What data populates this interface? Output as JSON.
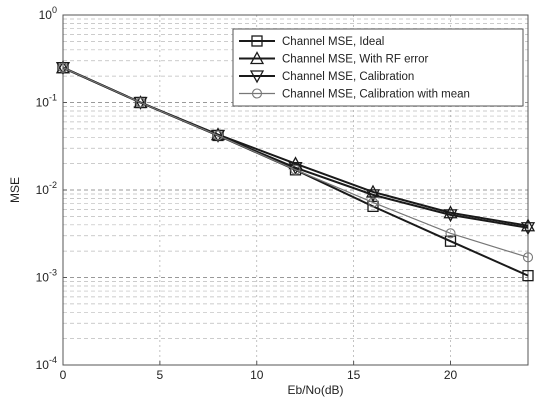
{
  "chart_data": {
    "type": "line",
    "title": "",
    "xlabel": "Eb/No(dB)",
    "ylabel": "MSE",
    "xlim": [
      0,
      24
    ],
    "ylim": [
      0.0001,
      1
    ],
    "yscale": "log",
    "grid": true,
    "legend_position": "top-right",
    "x_ticks": [
      "0",
      "5",
      "10",
      "15",
      "20"
    ],
    "y_ticks": [
      {
        "base": "10",
        "exp": "0"
      },
      {
        "base": "10",
        "exp": "-1"
      },
      {
        "base": "10",
        "exp": "-2"
      },
      {
        "base": "10",
        "exp": "-3"
      },
      {
        "base": "10",
        "exp": "-4"
      }
    ],
    "x": [
      0,
      4,
      8,
      12,
      16,
      20,
      24
    ],
    "series": [
      {
        "name": "Channel MSE, Ideal",
        "marker": "square",
        "line": "thick",
        "values": [
          0.25,
          0.1,
          0.042,
          0.017,
          0.0065,
          0.0026,
          0.00105
        ]
      },
      {
        "name": "Channel MSE, With RF error",
        "marker": "triangle-up",
        "line": "thick",
        "values": [
          0.25,
          0.1,
          0.043,
          0.02,
          0.0095,
          0.0055,
          0.0039
        ]
      },
      {
        "name": "Channel MSE, Calibration",
        "marker": "triangle-down",
        "line": "thick",
        "values": [
          0.25,
          0.1,
          0.042,
          0.018,
          0.0088,
          0.0052,
          0.0037
        ]
      },
      {
        "name": "Channel MSE, Calibration with mean",
        "marker": "circle",
        "line": "thin",
        "values": [
          0.25,
          0.1,
          0.042,
          0.017,
          0.0072,
          0.0032,
          0.0017
        ]
      }
    ]
  }
}
